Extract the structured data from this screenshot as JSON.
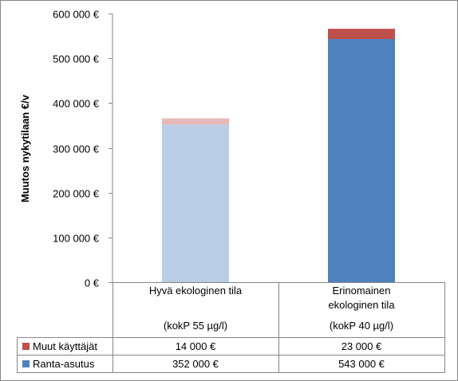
{
  "chart_data": {
    "type": "bar",
    "stacked": true,
    "categories": [
      {
        "lines": [
          "Hyvä ekologinen tila",
          "",
          "(kokP 55 µg/l)"
        ]
      },
      {
        "lines": [
          "Erinomainen",
          "ekologinen tila",
          "(kokP 40 µg/l)"
        ]
      }
    ],
    "series": [
      {
        "name": "Ranta-asutus",
        "values": [
          352000,
          543000
        ],
        "value_labels": [
          "352 000 €",
          "543 000 €"
        ],
        "colors": [
          "#b9cde5",
          "#4f81bd"
        ],
        "legend_color": "#4f81bd"
      },
      {
        "name": "Muut käyttäjät",
        "values": [
          14000,
          23000
        ],
        "value_labels": [
          "14 000 €",
          "23 000 €"
        ],
        "colors": [
          "#e6b9b8",
          "#c0504d"
        ],
        "legend_color": "#c0504d"
      }
    ],
    "ylabel": "Muutos nykytilaan €/v",
    "ylim": [
      0,
      600000
    ],
    "yticks": [
      0,
      100000,
      200000,
      300000,
      400000,
      500000,
      600000
    ],
    "ytick_labels": [
      "0 €",
      "100 000 €",
      "200 000 €",
      "300 000 €",
      "400 000 €",
      "500 000 €",
      "600 000 €"
    ],
    "grid": false,
    "legend": "data-table",
    "colors": {
      "axis": "#868686"
    }
  }
}
